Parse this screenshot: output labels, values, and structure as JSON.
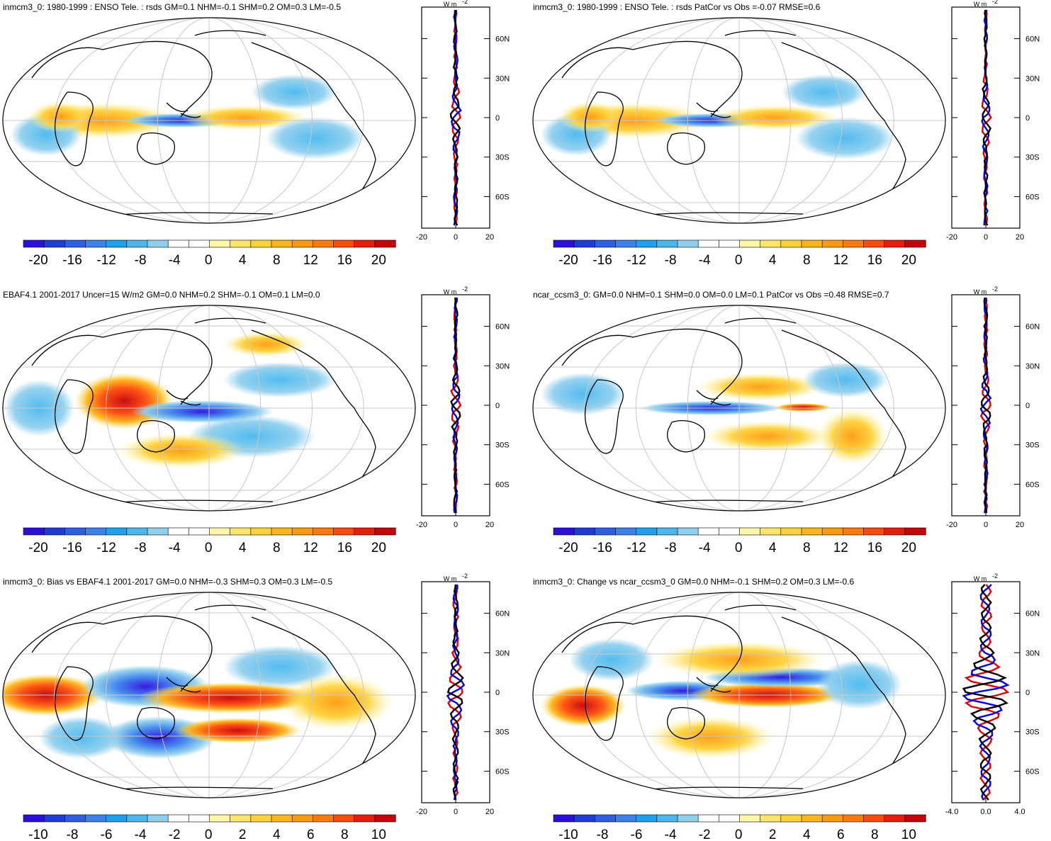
{
  "figure": {
    "latitude_labels": [
      "60N",
      "30N",
      "0",
      "30S",
      "60S"
    ],
    "unit": "W m",
    "unit_exponent": "-2",
    "colors": {
      "blue_scale": [
        "#2a0fe0",
        "#1e3cd8",
        "#2d5fe4",
        "#3b82ec",
        "#1ea0f0",
        "#4ab8ee",
        "#8fcfee"
      ],
      "red_scale": [
        "#fff6a8",
        "#ffe46a",
        "#ffd23a",
        "#ffb619",
        "#ff9a0e",
        "#ff7a0a",
        "#ff4a08",
        "#e81c08",
        "#c80008"
      ],
      "center": "#ffffff",
      "zonal_lines": [
        "#e00000",
        "#0000e0",
        "#000000"
      ]
    },
    "panels": [
      {
        "title": "inmcm3_0: 1980-1999 : ENSO Tele. : rsds GM=0.1 NHM=-0.1 SHM=0.2 OM=0.3 LM=-0.5",
        "colorbar_labels": [
          "-20",
          "-16",
          "-12",
          "-8",
          "-4",
          "0",
          "4",
          "8",
          "12",
          "16",
          "20"
        ],
        "zonal_axis_labels": [
          "-20",
          "0",
          "20"
        ]
      },
      {
        "title": "inmcm3_0: 1980-1999 : ENSO Tele. : rsds PatCor vs Obs =-0.07 RMSE=0.6",
        "colorbar_labels": [
          "-20",
          "-16",
          "-12",
          "-8",
          "-4",
          "0",
          "4",
          "8",
          "12",
          "16",
          "20"
        ],
        "zonal_axis_labels": [
          "-20",
          "0",
          "20"
        ]
      },
      {
        "title": "EBAF4.1 2001-2017 Uncer=15 W/m2 GM=0.0 NHM=0.2 SHM=-0.1 OM=0.1 LM=0.0",
        "colorbar_labels": [
          "-20",
          "-16",
          "-12",
          "-8",
          "-4",
          "0",
          "4",
          "8",
          "12",
          "16",
          "20"
        ],
        "zonal_axis_labels": [
          "-20",
          "0",
          "20"
        ]
      },
      {
        "title": "ncar_ccsm3_0: GM=0.0 NHM=0.1 SHM=0.0 OM=0.0 LM=0.1 PatCor vs Obs =0.48 RMSE=0.7",
        "colorbar_labels": [
          "-20",
          "-16",
          "-12",
          "-8",
          "-4",
          "0",
          "4",
          "8",
          "12",
          "16",
          "20"
        ],
        "zonal_axis_labels": [
          "-20",
          "0",
          "20"
        ]
      },
      {
        "title": "inmcm3_0: Bias vs EBAF4.1 2001-2017 GM=0.0 NHM=-0.3 SHM=0.3 OM=0.3 LM=-0.5",
        "colorbar_labels": [
          "-10",
          "-8",
          "-6",
          "-4",
          "-2",
          "0",
          "2",
          "4",
          "6",
          "8",
          "10"
        ],
        "zonal_axis_labels": [
          "-20",
          "0",
          "20"
        ]
      },
      {
        "title": "inmcm3_0: Change vs ncar_ccsm3_0 GM=0.0 NHM=-0.1 SHM=0.2 OM=0.3 LM=-0.6",
        "colorbar_labels": [
          "-10",
          "-8",
          "-6",
          "-4",
          "-2",
          "0",
          "2",
          "4",
          "6",
          "8",
          "10"
        ],
        "zonal_axis_labels": [
          "-4.0",
          "0.0",
          "4.0"
        ]
      }
    ]
  }
}
